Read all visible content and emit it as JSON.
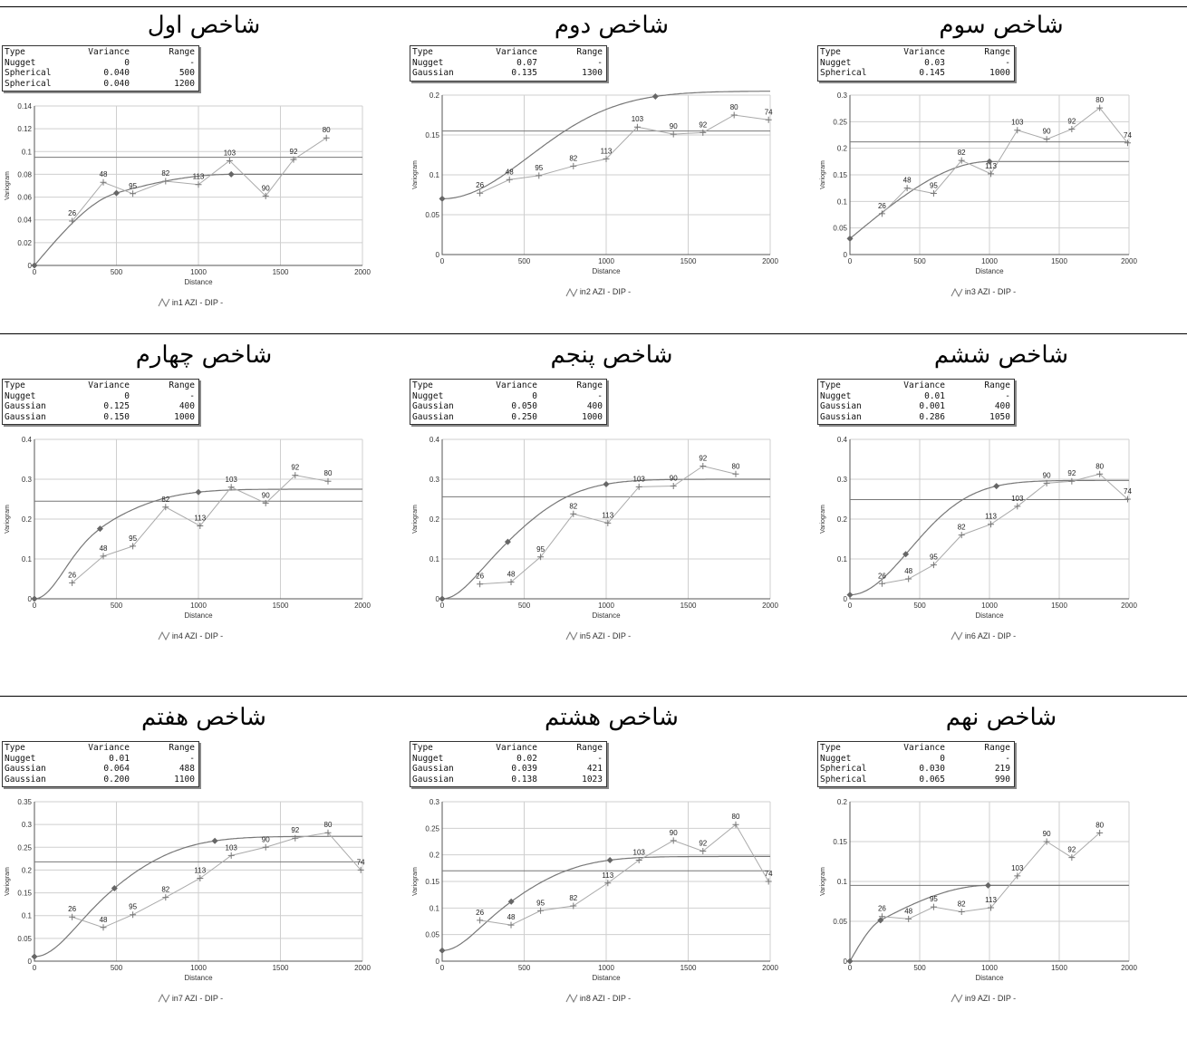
{
  "chart_data": [
    {
      "type": "line",
      "title": "شاخص اول",
      "xlabel": "Distance",
      "ylabel": "Variogram",
      "caption": "in1 AZI - DIP -",
      "xlim": [
        0,
        2000
      ],
      "ylim": [
        0,
        0.14
      ],
      "xticks": [
        0,
        500,
        1000,
        1500,
        2000
      ],
      "yticks": [
        0,
        0.02,
        0.04,
        0.06,
        0.08,
        0.1,
        0.12,
        0.14
      ],
      "model_header": [
        "Type",
        "Variance",
        "Range"
      ],
      "model": [
        {
          "type": "Nugget",
          "variance": "0",
          "range": "-"
        },
        {
          "type": "Spherical",
          "variance": "0.040",
          "range": "500"
        },
        {
          "type": "Spherical",
          "variance": "0.040",
          "range": "1200"
        }
      ],
      "experimental": [
        {
          "x": 230,
          "y": 0.039,
          "label": "26"
        },
        {
          "x": 420,
          "y": 0.073,
          "label": "48"
        },
        {
          "x": 600,
          "y": 0.063,
          "label": "95"
        },
        {
          "x": 800,
          "y": 0.074,
          "label": "82"
        },
        {
          "x": 1000,
          "y": 0.071,
          "label": "113"
        },
        {
          "x": 1190,
          "y": 0.092,
          "label": "103"
        },
        {
          "x": 1410,
          "y": 0.061,
          "label": "90"
        },
        {
          "x": 1580,
          "y": 0.093,
          "label": "92"
        },
        {
          "x": 1780,
          "y": 0.112,
          "label": "80"
        }
      ],
      "model_curve": {
        "nugget": 0,
        "structures": [
          {
            "kind": "spherical",
            "sill": 0.04,
            "range": 500
          },
          {
            "kind": "spherical",
            "sill": 0.04,
            "range": 1200
          }
        ]
      },
      "sill_line": 0.095,
      "markers": [
        0,
        500,
        1200
      ]
    },
    {
      "type": "line",
      "title": "شاخص دوم",
      "xlabel": "Distance",
      "ylabel": "Variogram",
      "caption": "in2 AZI - DIP -",
      "xlim": [
        0,
        2000
      ],
      "ylim": [
        0,
        0.2
      ],
      "xticks": [
        0,
        500,
        1000,
        1500,
        2000
      ],
      "yticks": [
        0,
        0.05,
        0.1,
        0.15,
        0.2
      ],
      "model_header": [
        "Type",
        "Variance",
        "Range"
      ],
      "model": [
        {
          "type": "Nugget",
          "variance": "0.07",
          "range": "-"
        },
        {
          "type": "Gaussian",
          "variance": "0.135",
          "range": "1300"
        }
      ],
      "experimental": [
        {
          "x": 230,
          "y": 0.077,
          "label": "26"
        },
        {
          "x": 410,
          "y": 0.094,
          "label": "48"
        },
        {
          "x": 590,
          "y": 0.099,
          "label": "95"
        },
        {
          "x": 800,
          "y": 0.111,
          "label": "82"
        },
        {
          "x": 1000,
          "y": 0.12,
          "label": "113"
        },
        {
          "x": 1190,
          "y": 0.16,
          "label": "103"
        },
        {
          "x": 1410,
          "y": 0.151,
          "label": "90"
        },
        {
          "x": 1590,
          "y": 0.153,
          "label": "92"
        },
        {
          "x": 1780,
          "y": 0.175,
          "label": "80"
        },
        {
          "x": 1990,
          "y": 0.169,
          "label": "74"
        }
      ],
      "model_curve": {
        "nugget": 0.07,
        "structures": [
          {
            "kind": "gaussian",
            "sill": 0.135,
            "range": 1300
          }
        ]
      },
      "sill_line": 0.155,
      "markers": [
        0,
        1300
      ]
    },
    {
      "type": "line",
      "title": "شاخص سوم",
      "xlabel": "Distance",
      "ylabel": "Variogram",
      "caption": "in3 AZI - DIP -",
      "xlim": [
        0,
        2000
      ],
      "ylim": [
        0,
        0.3
      ],
      "xticks": [
        0,
        500,
        1000,
        1500,
        2000
      ],
      "yticks": [
        0,
        0.05,
        0.1,
        0.15,
        0.2,
        0.25,
        0.3
      ],
      "model_header": [
        "Type",
        "Variance",
        "Range"
      ],
      "model": [
        {
          "type": "Nugget",
          "variance": "0.03",
          "range": "-"
        },
        {
          "type": "Spherical",
          "variance": "0.145",
          "range": "1000"
        }
      ],
      "experimental": [
        {
          "x": 230,
          "y": 0.077,
          "label": "26"
        },
        {
          "x": 410,
          "y": 0.125,
          "label": "48"
        },
        {
          "x": 600,
          "y": 0.115,
          "label": "95"
        },
        {
          "x": 800,
          "y": 0.177,
          "label": "82"
        },
        {
          "x": 1010,
          "y": 0.152,
          "label": "113"
        },
        {
          "x": 1200,
          "y": 0.234,
          "label": "103"
        },
        {
          "x": 1410,
          "y": 0.217,
          "label": "90"
        },
        {
          "x": 1590,
          "y": 0.236,
          "label": "92"
        },
        {
          "x": 1790,
          "y": 0.276,
          "label": "80"
        },
        {
          "x": 1990,
          "y": 0.21,
          "label": "74"
        }
      ],
      "model_curve": {
        "nugget": 0.03,
        "structures": [
          {
            "kind": "spherical",
            "sill": 0.145,
            "range": 1000
          }
        ]
      },
      "sill_line": 0.212,
      "markers": [
        0,
        1000
      ]
    },
    {
      "type": "line",
      "title": "شاخص چهارم",
      "xlabel": "Distance",
      "ylabel": "Variogram",
      "caption": "in4 AZI - DIP -",
      "xlim": [
        0,
        2000
      ],
      "ylim": [
        0,
        0.4
      ],
      "xticks": [
        0,
        500,
        1000,
        1500,
        2000
      ],
      "yticks": [
        0,
        0.1,
        0.2,
        0.3,
        0.4
      ],
      "model_header": [
        "Type",
        "Variance",
        "Range"
      ],
      "model": [
        {
          "type": "Nugget",
          "variance": "0",
          "range": "-"
        },
        {
          "type": "Gaussian",
          "variance": "0.125",
          "range": "400"
        },
        {
          "type": "Gaussian",
          "variance": "0.150",
          "range": "1000"
        }
      ],
      "experimental": [
        {
          "x": 230,
          "y": 0.04,
          "label": "26"
        },
        {
          "x": 420,
          "y": 0.107,
          "label": "48"
        },
        {
          "x": 600,
          "y": 0.132,
          "label": "95"
        },
        {
          "x": 800,
          "y": 0.23,
          "label": "82"
        },
        {
          "x": 1010,
          "y": 0.183,
          "label": "113"
        },
        {
          "x": 1200,
          "y": 0.28,
          "label": "103"
        },
        {
          "x": 1410,
          "y": 0.24,
          "label": "90"
        },
        {
          "x": 1590,
          "y": 0.31,
          "label": "92"
        },
        {
          "x": 1790,
          "y": 0.295,
          "label": "80"
        }
      ],
      "model_curve": {
        "nugget": 0,
        "structures": [
          {
            "kind": "gaussian",
            "sill": 0.125,
            "range": 400
          },
          {
            "kind": "gaussian",
            "sill": 0.15,
            "range": 1000
          }
        ]
      },
      "sill_line": 0.245,
      "markers": [
        0,
        400,
        1000
      ]
    },
    {
      "type": "line",
      "title": "شاخص پنجم",
      "xlabel": "Distance",
      "ylabel": "Variogram",
      "caption": "in5 AZI - DIP -",
      "xlim": [
        0,
        2000
      ],
      "ylim": [
        0,
        0.4
      ],
      "xticks": [
        0,
        500,
        1000,
        1500,
        2000
      ],
      "yticks": [
        0,
        0.1,
        0.2,
        0.3,
        0.4
      ],
      "model_header": [
        "Type",
        "Variance",
        "Range"
      ],
      "model": [
        {
          "type": "Nugget",
          "variance": "0",
          "range": "-"
        },
        {
          "type": "Gaussian",
          "variance": "0.050",
          "range": "400"
        },
        {
          "type": "Gaussian",
          "variance": "0.250",
          "range": "1000"
        }
      ],
      "experimental": [
        {
          "x": 230,
          "y": 0.037,
          "label": "26"
        },
        {
          "x": 420,
          "y": 0.042,
          "label": "48"
        },
        {
          "x": 600,
          "y": 0.105,
          "label": "95"
        },
        {
          "x": 800,
          "y": 0.213,
          "label": "82"
        },
        {
          "x": 1010,
          "y": 0.19,
          "label": "113"
        },
        {
          "x": 1200,
          "y": 0.281,
          "label": "103"
        },
        {
          "x": 1410,
          "y": 0.283,
          "label": "90"
        },
        {
          "x": 1590,
          "y": 0.333,
          "label": "92"
        },
        {
          "x": 1790,
          "y": 0.313,
          "label": "80"
        }
      ],
      "model_curve": {
        "nugget": 0,
        "structures": [
          {
            "kind": "gaussian",
            "sill": 0.05,
            "range": 400
          },
          {
            "kind": "gaussian",
            "sill": 0.25,
            "range": 1000
          }
        ]
      },
      "sill_line": 0.256,
      "markers": [
        0,
        400,
        1000
      ]
    },
    {
      "type": "line",
      "title": "شاخص ششم",
      "xlabel": "Distance",
      "ylabel": "Variogram",
      "caption": "in6 AZI - DIP -",
      "xlim": [
        0,
        2000
      ],
      "ylim": [
        0,
        0.4
      ],
      "xticks": [
        0,
        500,
        1000,
        1500,
        2000
      ],
      "yticks": [
        0,
        0.1,
        0.2,
        0.3,
        0.4
      ],
      "model_header": [
        "Type",
        "Variance",
        "Range"
      ],
      "model": [
        {
          "type": "Nugget",
          "variance": "0.01",
          "range": "-"
        },
        {
          "type": "Gaussian",
          "variance": "0.001",
          "range": "400"
        },
        {
          "type": "Gaussian",
          "variance": "0.286",
          "range": "1050"
        }
      ],
      "experimental": [
        {
          "x": 230,
          "y": 0.038,
          "label": "26"
        },
        {
          "x": 420,
          "y": 0.05,
          "label": "48"
        },
        {
          "x": 600,
          "y": 0.085,
          "label": "95"
        },
        {
          "x": 800,
          "y": 0.16,
          "label": "82"
        },
        {
          "x": 1010,
          "y": 0.187,
          "label": "113"
        },
        {
          "x": 1200,
          "y": 0.232,
          "label": "103"
        },
        {
          "x": 1410,
          "y": 0.29,
          "label": "90"
        },
        {
          "x": 1590,
          "y": 0.295,
          "label": "92"
        },
        {
          "x": 1790,
          "y": 0.313,
          "label": "80"
        },
        {
          "x": 1990,
          "y": 0.25,
          "label": "74"
        }
      ],
      "model_curve": {
        "nugget": 0.01,
        "structures": [
          {
            "kind": "gaussian",
            "sill": 0.001,
            "range": 400
          },
          {
            "kind": "gaussian",
            "sill": 0.286,
            "range": 1050
          }
        ]
      },
      "sill_line": 0.249,
      "markers": [
        0,
        400,
        1050
      ]
    },
    {
      "type": "line",
      "title": "شاخص هفتم",
      "xlabel": "Distance",
      "ylabel": "Variogram",
      "caption": "in7 AZI - DIP -",
      "xlim": [
        0,
        2000
      ],
      "ylim": [
        0,
        0.35
      ],
      "xticks": [
        0,
        500,
        1000,
        1500,
        2000
      ],
      "yticks": [
        0,
        0.05,
        0.1,
        0.15,
        0.2,
        0.25,
        0.3,
        0.35
      ],
      "model_header": [
        "Type",
        "Variance",
        "Range"
      ],
      "model": [
        {
          "type": "Nugget",
          "variance": "0.01",
          "range": "-"
        },
        {
          "type": "Gaussian",
          "variance": "0.064",
          "range": "488"
        },
        {
          "type": "Gaussian",
          "variance": "0.200",
          "range": "1100"
        }
      ],
      "experimental": [
        {
          "x": 230,
          "y": 0.097,
          "label": "26"
        },
        {
          "x": 420,
          "y": 0.074,
          "label": "48"
        },
        {
          "x": 600,
          "y": 0.102,
          "label": "95"
        },
        {
          "x": 800,
          "y": 0.14,
          "label": "82"
        },
        {
          "x": 1010,
          "y": 0.182,
          "label": "113"
        },
        {
          "x": 1200,
          "y": 0.232,
          "label": "103"
        },
        {
          "x": 1410,
          "y": 0.25,
          "label": "90"
        },
        {
          "x": 1590,
          "y": 0.27,
          "label": "92"
        },
        {
          "x": 1790,
          "y": 0.282,
          "label": "80"
        },
        {
          "x": 1990,
          "y": 0.2,
          "label": "74"
        }
      ],
      "model_curve": {
        "nugget": 0.01,
        "structures": [
          {
            "kind": "gaussian",
            "sill": 0.064,
            "range": 488
          },
          {
            "kind": "gaussian",
            "sill": 0.2,
            "range": 1100
          }
        ]
      },
      "sill_line": 0.218,
      "markers": [
        0,
        488,
        1100
      ]
    },
    {
      "type": "line",
      "title": "شاخص هشتم",
      "xlabel": "Distance",
      "ylabel": "Variogram",
      "caption": "in8 AZI - DIP -",
      "xlim": [
        0,
        2000
      ],
      "ylim": [
        0,
        0.3
      ],
      "xticks": [
        0,
        500,
        1000,
        1500,
        2000
      ],
      "yticks": [
        0,
        0.05,
        0.1,
        0.15,
        0.2,
        0.25,
        0.3
      ],
      "model_header": [
        "Type",
        "Variance",
        "Range"
      ],
      "model": [
        {
          "type": "Nugget",
          "variance": "0.02",
          "range": "-"
        },
        {
          "type": "Gaussian",
          "variance": "0.039",
          "range": "421"
        },
        {
          "type": "Gaussian",
          "variance": "0.138",
          "range": "1023"
        }
      ],
      "experimental": [
        {
          "x": 230,
          "y": 0.077,
          "label": "26"
        },
        {
          "x": 420,
          "y": 0.068,
          "label": "48"
        },
        {
          "x": 600,
          "y": 0.095,
          "label": "95"
        },
        {
          "x": 800,
          "y": 0.104,
          "label": "82"
        },
        {
          "x": 1010,
          "y": 0.147,
          "label": "113"
        },
        {
          "x": 1200,
          "y": 0.19,
          "label": "103"
        },
        {
          "x": 1410,
          "y": 0.227,
          "label": "90"
        },
        {
          "x": 1590,
          "y": 0.207,
          "label": "92"
        },
        {
          "x": 1790,
          "y": 0.257,
          "label": "80"
        },
        {
          "x": 1990,
          "y": 0.15,
          "label": "74"
        }
      ],
      "model_curve": {
        "nugget": 0.02,
        "structures": [
          {
            "kind": "gaussian",
            "sill": 0.039,
            "range": 421
          },
          {
            "kind": "gaussian",
            "sill": 0.138,
            "range": 1023
          }
        ]
      },
      "sill_line": 0.17,
      "markers": [
        0,
        421,
        1023
      ]
    },
    {
      "type": "line",
      "title": "شاخص نهم",
      "xlabel": "Distance",
      "ylabel": "Variogram",
      "caption": "in9 AZI - DIP -",
      "xlim": [
        0,
        2000
      ],
      "ylim": [
        0,
        0.2
      ],
      "xticks": [
        0,
        500,
        1000,
        1500,
        2000
      ],
      "yticks": [
        0,
        0.05,
        0.1,
        0.15,
        0.2
      ],
      "model_header": [
        "Type",
        "Variance",
        "Range"
      ],
      "model": [
        {
          "type": "Nugget",
          "variance": "0",
          "range": "-"
        },
        {
          "type": "Spherical",
          "variance": "0.030",
          "range": "219"
        },
        {
          "type": "Spherical",
          "variance": "0.065",
          "range": "990"
        }
      ],
      "experimental": [
        {
          "x": 230,
          "y": 0.056,
          "label": "26"
        },
        {
          "x": 420,
          "y": 0.053,
          "label": "48"
        },
        {
          "x": 600,
          "y": 0.068,
          "label": "95"
        },
        {
          "x": 800,
          "y": 0.062,
          "label": "82"
        },
        {
          "x": 1010,
          "y": 0.067,
          "label": "113"
        },
        {
          "x": 1200,
          "y": 0.107,
          "label": "103"
        },
        {
          "x": 1410,
          "y": 0.15,
          "label": "90"
        },
        {
          "x": 1590,
          "y": 0.13,
          "label": "92"
        },
        {
          "x": 1790,
          "y": 0.161,
          "label": "80"
        }
      ],
      "model_curve": {
        "nugget": 0,
        "structures": [
          {
            "kind": "spherical",
            "sill": 0.03,
            "range": 219
          },
          {
            "kind": "spherical",
            "sill": 0.065,
            "range": 990
          }
        ]
      },
      "sill_line": 0.095,
      "markers": [
        0,
        219,
        990
      ]
    }
  ]
}
